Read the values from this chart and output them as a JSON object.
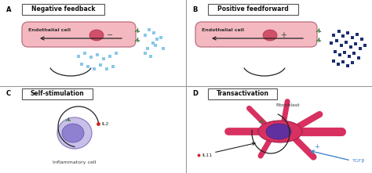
{
  "background_color": "#f0f0f0",
  "panel_bg": "#ffffff",
  "title_A": "Negative feedback",
  "title_B": "Positive feedforward",
  "title_C": "Self-stimulation",
  "title_D": "Transactivation",
  "label_A": "A",
  "label_B": "B",
  "label_C": "C",
  "label_D": "D",
  "cell_label": "Endothelial cell",
  "cell_label_C": "Inflammatory cell",
  "label_IL2": "IL2",
  "label_IL11": "IL11",
  "label_TGFb": "TGFβ",
  "label_Fibroblast": "Fibroblast",
  "sign_neg": "−",
  "sign_pos": "+",
  "cell_fill": "#f4b8c0",
  "cell_border": "#c07888",
  "nucleus_fill": "#d05068",
  "receptor_color": "#3a7a3a",
  "ligand_color_A": "#88c8e8",
  "ligand_color_B": "#1a2e6e",
  "arrow_color": "#222222",
  "divider_color": "#999999",
  "fibroblast_fill": "#d83060",
  "fibroblast_nucleus": "#6030a0",
  "inflam_fill": "#c8c0e8",
  "inflam_nucleus": "#9080d0",
  "tgfb_arrow_color": "#4488cc",
  "il2_dot_color": "#cc2222",
  "plus_color": "#444444",
  "minus_color": "#444444"
}
